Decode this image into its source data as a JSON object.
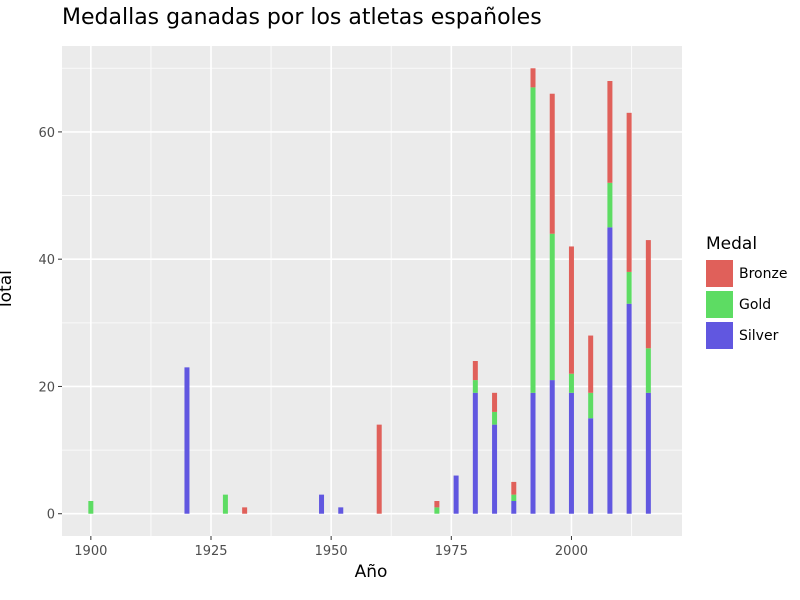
{
  "chart_data": {
    "type": "bar",
    "stacked": true,
    "title": "Medallas ganadas por los atletas españoles",
    "xlabel": "Año",
    "ylabel": "Total",
    "xlim": [
      1894,
      2023
    ],
    "ylim": [
      -3.5,
      73.5
    ],
    "x_ticks": [
      1900,
      1925,
      1950,
      1975,
      2000
    ],
    "y_ticks": [
      0,
      20,
      40,
      60
    ],
    "grid": true,
    "legend": {
      "title": "Medal",
      "position": "right",
      "entries": [
        "Bronze",
        "Gold",
        "Silver"
      ]
    },
    "colors": {
      "Bronze": "#e0605a",
      "Gold": "#5ddc63",
      "Silver": "#6157e0"
    },
    "categories": [
      1900,
      1920,
      1928,
      1932,
      1948,
      1952,
      1960,
      1972,
      1976,
      1980,
      1984,
      1988,
      1992,
      1996,
      2000,
      2004,
      2008,
      2012,
      2016
    ],
    "series": [
      {
        "name": "Silver",
        "values": [
          0,
          23,
          0,
          0,
          3,
          1,
          0,
          0,
          6,
          19,
          14,
          2,
          19,
          21,
          19,
          15,
          45,
          33,
          19
        ]
      },
      {
        "name": "Gold",
        "values": [
          2,
          0,
          3,
          0,
          0,
          0,
          0,
          1,
          0,
          2,
          2,
          1,
          48,
          23,
          3,
          4,
          7,
          5,
          7
        ]
      },
      {
        "name": "Bronze",
        "values": [
          0,
          0,
          0,
          1,
          0,
          0,
          14,
          1,
          0,
          3,
          3,
          2,
          3,
          22,
          20,
          9,
          16,
          25,
          17
        ]
      }
    ]
  }
}
